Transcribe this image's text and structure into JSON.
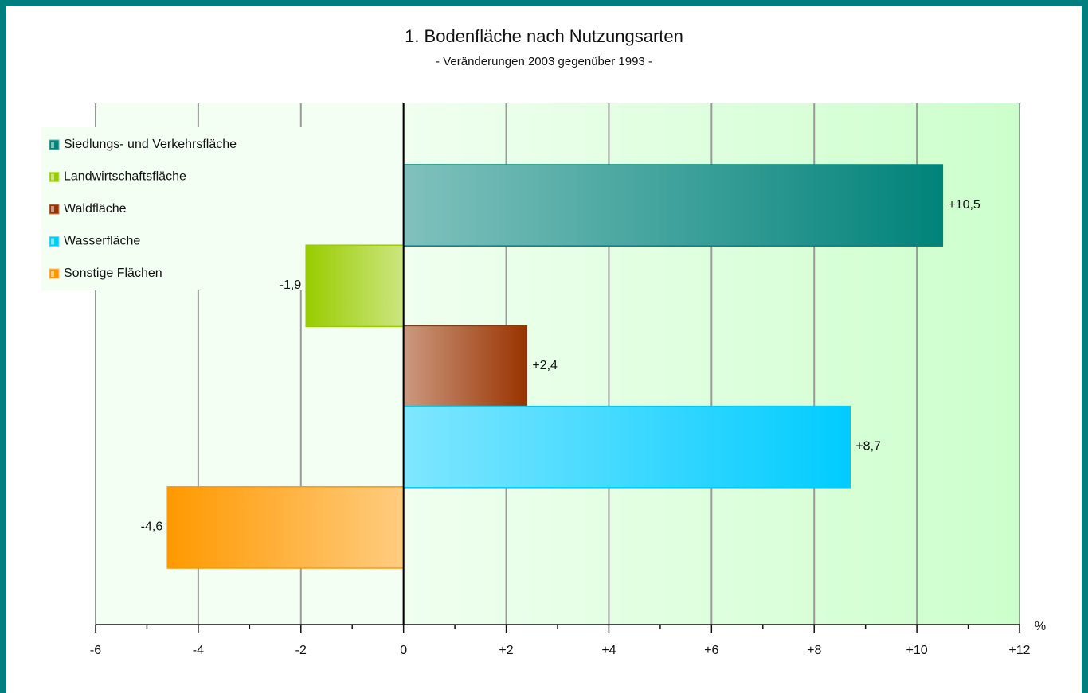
{
  "chart_data": {
    "type": "bar",
    "orientation": "horizontal",
    "title": "1. Bodenfläche nach Nutzungsarten",
    "subtitle": "- Veränderungen 2003 gegenüber 1993 -",
    "categories": [
      "Siedlungs- und Verkehrsfläche",
      "Landwirtschaftsfläche",
      "Waldfläche",
      "Wasserfläche",
      "Sonstige Flächen"
    ],
    "values": [
      10.5,
      -1.9,
      2.4,
      8.7,
      -4.6
    ],
    "value_labels": [
      "+10,5",
      "-1,9",
      "+2,4",
      "+8,7",
      "-4,6"
    ],
    "colors": [
      "#00837a",
      "#99cc00",
      "#993300",
      "#00ccff",
      "#ff9900"
    ],
    "xlim": [
      -6,
      12
    ],
    "xticks": [
      -6,
      -4,
      -2,
      0,
      {
        "value": 2,
        "label": "+2"
      },
      {
        "value": 4,
        "label": "+4"
      },
      {
        "value": 6,
        "label": "+6"
      },
      {
        "value": 8,
        "label": "+8"
      },
      {
        "value": 10,
        "label": "+10"
      },
      {
        "value": 12,
        "label": "+12"
      }
    ],
    "xticks_minor": [
      -5,
      -3,
      -1,
      1,
      3,
      5,
      7,
      9,
      11
    ],
    "unit": "%",
    "grid": true,
    "legend": "top-left"
  }
}
